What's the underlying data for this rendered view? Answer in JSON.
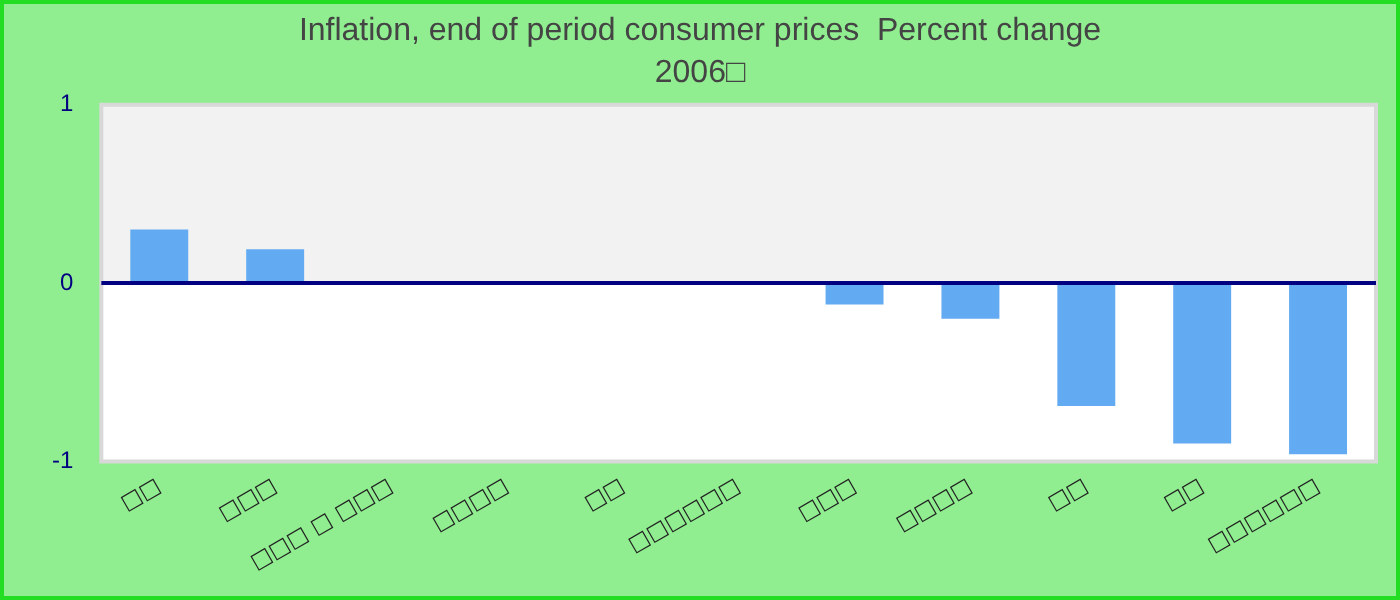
{
  "chart_data": {
    "type": "bar",
    "title": "Inflation, end of period consumer prices  Percent change",
    "subtitle": "2006□",
    "categories": [
      "□□",
      "□□□",
      "□□□ □ □□□",
      "□□□□",
      "□□",
      "□□□□□□",
      "□□□",
      "□□□□",
      "□□",
      "□□",
      "□□□□□□"
    ],
    "values": [
      0.3,
      0.19,
      0,
      0,
      0,
      0,
      -0.12,
      -0.2,
      -0.69,
      -0.9,
      -0.96
    ],
    "color": "#62aaf2",
    "ylim": [
      -1,
      1
    ],
    "yticks": [
      -1,
      0,
      1
    ],
    "ref_lines": [
      {
        "axis": "y",
        "value": 0,
        "color": "#000080"
      }
    ],
    "grid": false,
    "legend": false
  }
}
